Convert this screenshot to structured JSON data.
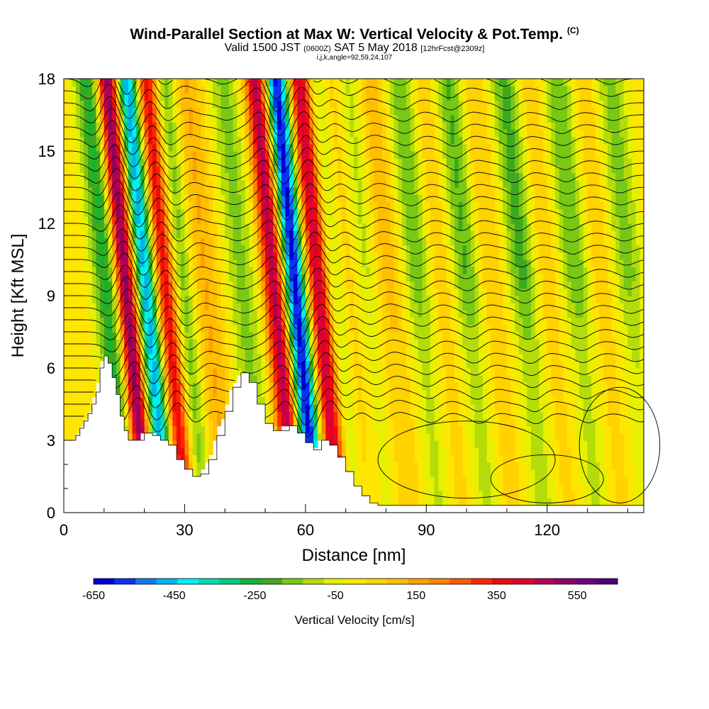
{
  "title": {
    "main": "Wind-Parallel Section at Max W: Vertical Velocity & Pot.Temp.",
    "tag": "(C)",
    "valid_prefix": "Valid 1500 JST",
    "valid_z": "(0600Z)",
    "valid_date": "SAT 5 May 2018",
    "forecast": "[12hrFcst@2309z]",
    "params": "i,j,k,angle=92,59,24,107"
  },
  "chart_data": {
    "type": "heatmap",
    "xlabel": "Distance [nm]",
    "ylabel": "Height [Kft MSL]",
    "xlim": [
      0,
      144
    ],
    "ylim": [
      0,
      18
    ],
    "x_ticks": [
      0,
      30,
      60,
      90,
      120
    ],
    "y_ticks": [
      0,
      3,
      6,
      9,
      12,
      15,
      18
    ],
    "colorbar": {
      "label": "Vertical Velocity [cm/s]",
      "tick_labels": [
        "-650",
        "-450",
        "-250",
        "-50",
        "150",
        "350",
        "550"
      ],
      "tick_values": [
        -650,
        -450,
        -250,
        -50,
        150,
        350,
        550
      ],
      "range": [
        -650,
        650
      ],
      "colors": [
        "#0000dc",
        "#0a32f0",
        "#1478f0",
        "#00b4f0",
        "#00f0f0",
        "#00dcb4",
        "#00c878",
        "#14b432",
        "#3caa1e",
        "#78c814",
        "#b4dc0a",
        "#e6f000",
        "#ffe600",
        "#ffd200",
        "#ffbe00",
        "#ffa000",
        "#ff8200",
        "#ff5a00",
        "#ff2800",
        "#f00a0a",
        "#dc0032",
        "#b40050",
        "#8c0064",
        "#6e0078",
        "#50007d"
      ]
    },
    "terrain_kft": [
      [
        0,
        3.0
      ],
      [
        2,
        3.0
      ],
      [
        3,
        3.2
      ],
      [
        4,
        3.5
      ],
      [
        5,
        3.8
      ],
      [
        6,
        4.1
      ],
      [
        7,
        4.5
      ],
      [
        8,
        5.0
      ],
      [
        9,
        6.0
      ],
      [
        10,
        6.5
      ],
      [
        11,
        6.2
      ],
      [
        12,
        5.6
      ],
      [
        13,
        4.9
      ],
      [
        14,
        4.0
      ],
      [
        15,
        3.4
      ],
      [
        16,
        3.0
      ],
      [
        18,
        3.0
      ],
      [
        20,
        3.3
      ],
      [
        22,
        3.2
      ],
      [
        24,
        3.0
      ],
      [
        26,
        2.8
      ],
      [
        28,
        2.2
      ],
      [
        30,
        1.8
      ],
      [
        32,
        1.5
      ],
      [
        34,
        1.6
      ],
      [
        36,
        2.2
      ],
      [
        38,
        3.2
      ],
      [
        40,
        4.2
      ],
      [
        42,
        5.2
      ],
      [
        44,
        5.8
      ],
      [
        46,
        5.4
      ],
      [
        48,
        4.5
      ],
      [
        50,
        3.7
      ],
      [
        52,
        3.4
      ],
      [
        54,
        3.4
      ],
      [
        56,
        3.6
      ],
      [
        58,
        3.3
      ],
      [
        60,
        2.9
      ],
      [
        62,
        2.6
      ],
      [
        64,
        3.0
      ],
      [
        66,
        2.8
      ],
      [
        68,
        2.3
      ],
      [
        70,
        1.7
      ],
      [
        72,
        1.1
      ],
      [
        74,
        0.7
      ],
      [
        76,
        0.4
      ],
      [
        78,
        0.3
      ],
      [
        82,
        0.3
      ],
      [
        86,
        0.3
      ],
      [
        90,
        0.3
      ],
      [
        100,
        0.3
      ],
      [
        110,
        0.3
      ],
      [
        120,
        0.3
      ],
      [
        130,
        0.3
      ],
      [
        144,
        0.3
      ]
    ],
    "updrafts": [
      {
        "x": 15,
        "w": 620
      },
      {
        "x": 25,
        "w": 450
      },
      {
        "x": 34,
        "w": 150
      },
      {
        "x": 52,
        "w": 470
      },
      {
        "x": 63,
        "w": 500
      },
      {
        "x": 70,
        "w": 160
      },
      {
        "x": 80,
        "w": 120
      },
      {
        "x": 93,
        "w": 90
      },
      {
        "x": 105,
        "w": 90
      },
      {
        "x": 119,
        "w": 80
      },
      {
        "x": 133,
        "w": 70
      }
    ],
    "downdrafts": [
      {
        "x": 11,
        "w": -300
      },
      {
        "x": 20,
        "w": -520
      },
      {
        "x": 29,
        "w": -230
      },
      {
        "x": 44,
        "w": -160
      },
      {
        "x": 57,
        "w": -650
      },
      {
        "x": 67,
        "w": -220
      },
      {
        "x": 75,
        "w": -150
      },
      {
        "x": 88,
        "w": -200
      },
      {
        "x": 100,
        "w": -220
      },
      {
        "x": 114,
        "w": -230
      },
      {
        "x": 127,
        "w": -200
      },
      {
        "x": 140,
        "w": -170
      }
    ]
  }
}
